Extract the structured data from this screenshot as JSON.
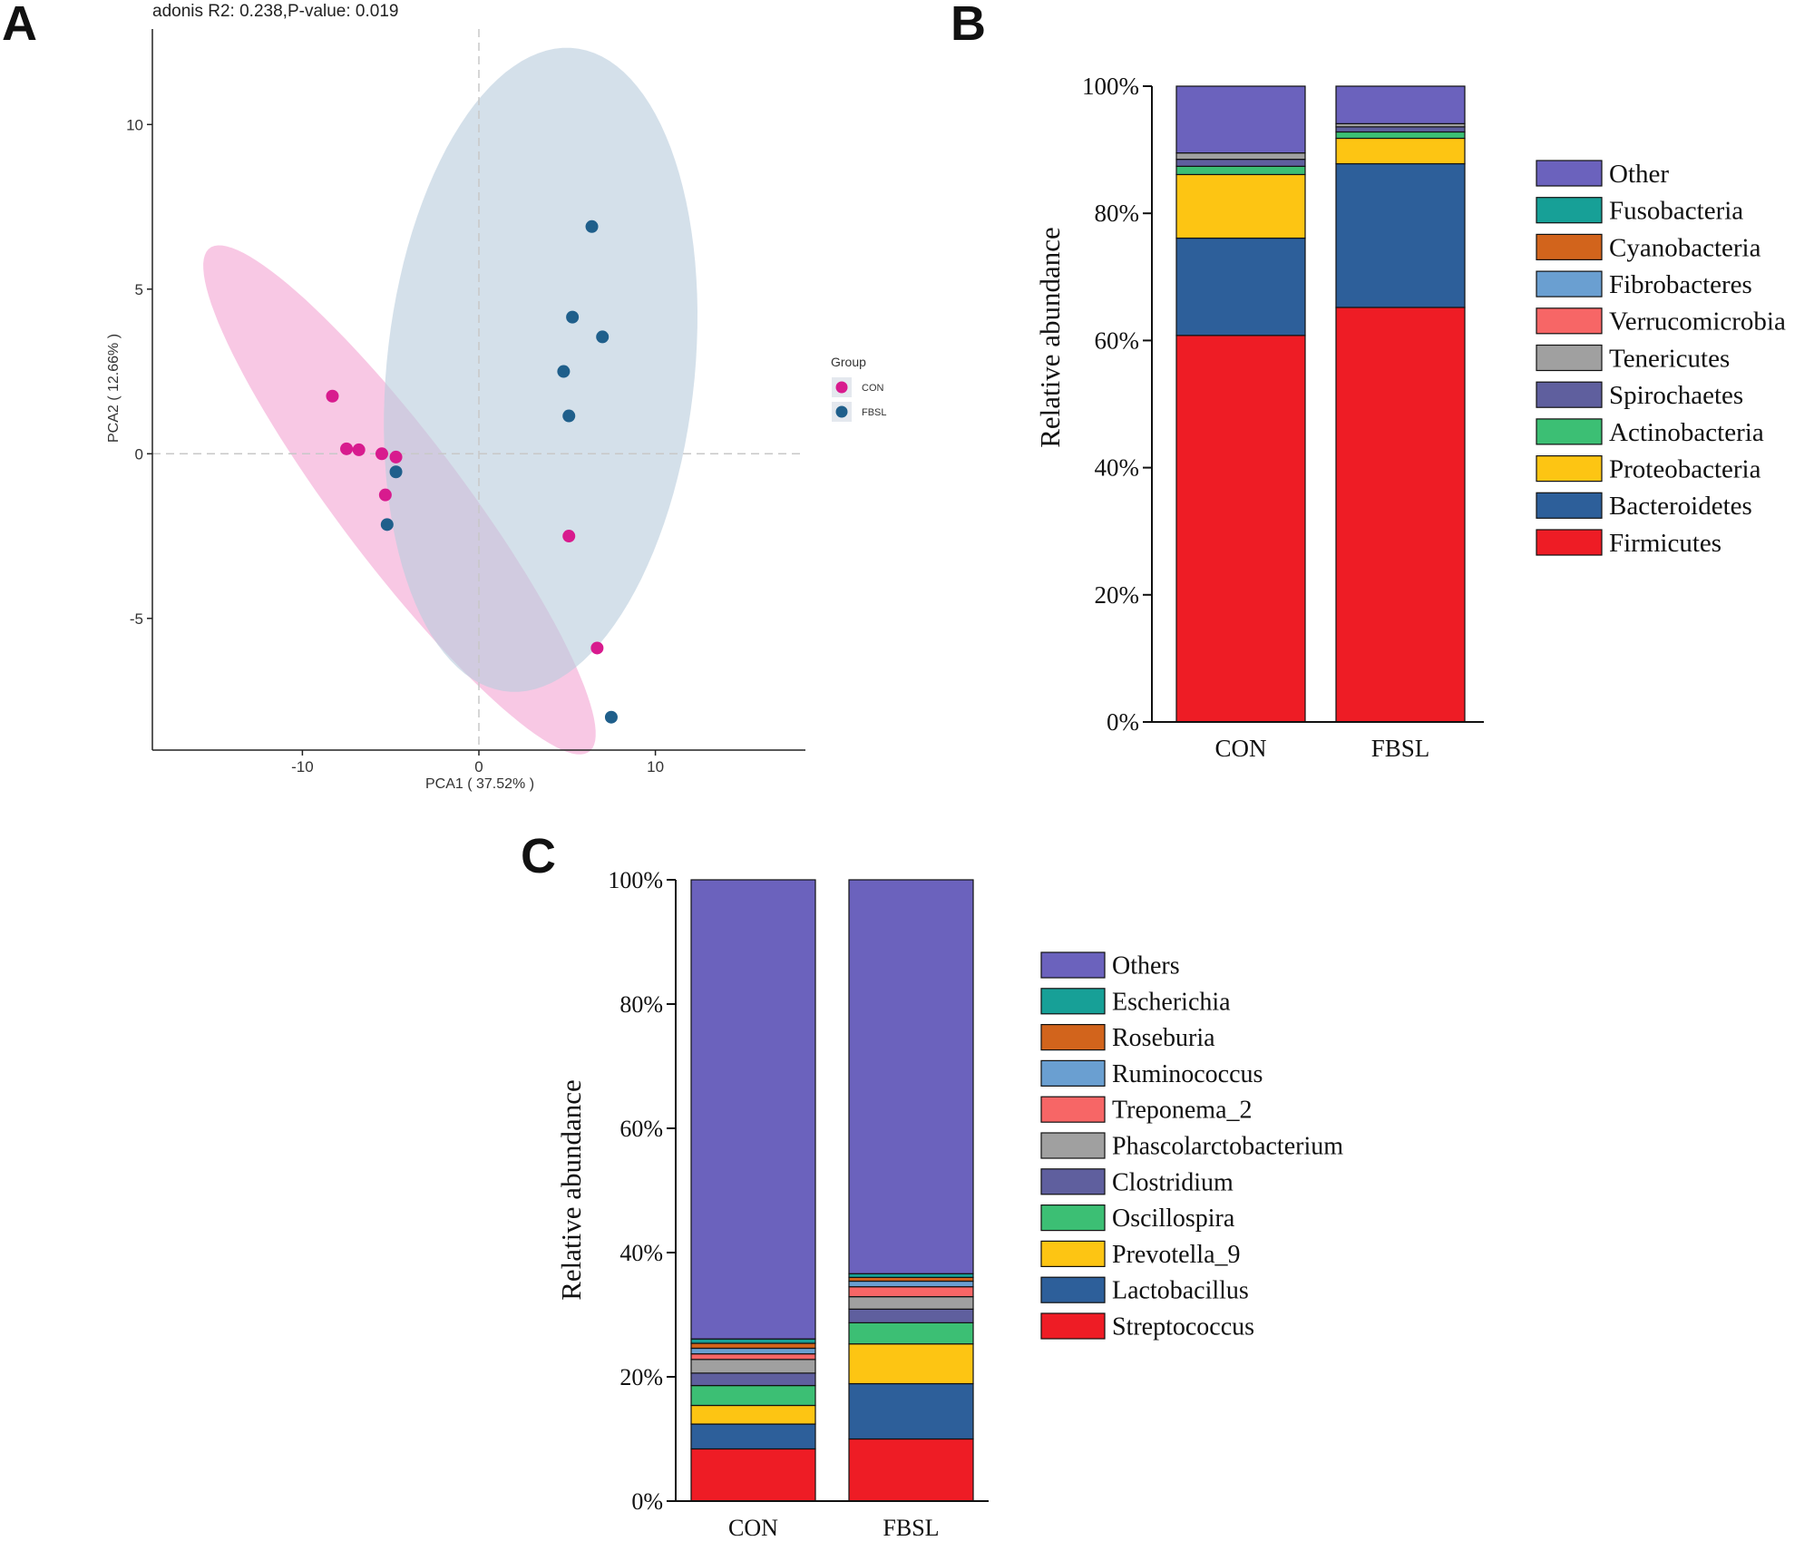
{
  "panels": {
    "a_label": "A",
    "b_label": "B",
    "c_label": "C"
  },
  "chart_data": [
    {
      "id": "pca",
      "type": "scatter",
      "title": "adonis R2: 0.238,P-value: 0.019",
      "xlabel": "PCA1 ( 37.52% )",
      "ylabel": "PCA2 ( 12.66% )",
      "xlim": [
        -18.5,
        18.5
      ],
      "ylim": [
        -9.0,
        12.9
      ],
      "xticks": [
        -10,
        0,
        10
      ],
      "xtick_labels": [
        "-10",
        "0",
        "10"
      ],
      "yticks": [
        -5,
        0,
        5,
        10
      ],
      "ytick_labels": [
        "-5",
        "0",
        "5",
        "10"
      ],
      "legend_title": "Group",
      "series": [
        {
          "name": "CON",
          "color": "#d81b8e",
          "points": [
            [
              -8.3,
              1.75
            ],
            [
              -7.5,
              0.15
            ],
            [
              -6.8,
              0.12
            ],
            [
              -5.5,
              0.0
            ],
            [
              -4.7,
              -0.1
            ],
            [
              -5.3,
              -1.25
            ],
            [
              5.1,
              -2.5
            ],
            [
              6.7,
              -5.9
            ]
          ]
        },
        {
          "name": "FBSL",
          "color": "#1f5f8b",
          "points": [
            [
              6.4,
              6.9
            ],
            [
              5.3,
              4.15
            ],
            [
              7.0,
              3.55
            ],
            [
              4.8,
              2.5
            ],
            [
              5.1,
              1.15
            ],
            [
              -4.7,
              -0.55
            ],
            [
              -5.2,
              -2.15
            ],
            [
              7.5,
              -8.0
            ]
          ]
        }
      ],
      "ellipses": [
        {
          "group": "CON",
          "color": "#f4a6d4",
          "center": [
            -4.5,
            -1.4
          ],
          "semi_major": 13.3,
          "semi_minor": 2.55,
          "angle_deg": -34
        },
        {
          "group": "FBSL",
          "color": "#b9cddd",
          "center": [
            3.5,
            2.55
          ],
          "semi_major": 10.2,
          "semi_minor": 8.4,
          "angle_deg": 60
        }
      ]
    },
    {
      "id": "phylum",
      "type": "bar",
      "stacked": true,
      "ylabel": "Relative abundance",
      "ylim": [
        0,
        100
      ],
      "yticks": [
        0,
        20,
        40,
        60,
        80,
        100
      ],
      "ytick_labels": [
        "0%",
        "20%",
        "40%",
        "60%",
        "80%",
        "100%"
      ],
      "categories": [
        "CON",
        "FBSL"
      ],
      "series": [
        {
          "name": "Firmicutes",
          "color": "#ee1c25",
          "values": [
            60.8,
            65.2
          ]
        },
        {
          "name": "Bacteroidetes",
          "color": "#2d5f9a",
          "values": [
            15.3,
            22.6
          ]
        },
        {
          "name": "Proteobacteria",
          "color": "#fdc513",
          "values": [
            10.0,
            4.0
          ]
        },
        {
          "name": "Actinobacteria",
          "color": "#3cbf74",
          "values": [
            1.3,
            1.0
          ]
        },
        {
          "name": "Spirochaetes",
          "color": "#5f5f9e",
          "values": [
            1.1,
            0.8
          ]
        },
        {
          "name": "Tenericutes",
          "color": "#a0a0a0",
          "values": [
            1.0,
            0.5
          ]
        },
        {
          "name": "Verrucomicrobia",
          "color": "#f76666",
          "values": [
            0.0,
            0.0
          ]
        },
        {
          "name": "Fibrobacteres",
          "color": "#6a9fd1",
          "values": [
            0.0,
            0.0
          ]
        },
        {
          "name": "Cyanobacteria",
          "color": "#d2641c",
          "values": [
            0.0,
            0.0
          ]
        },
        {
          "name": "Fusobacteria",
          "color": "#17a097",
          "values": [
            0.0,
            0.0
          ]
        },
        {
          "name": "Other",
          "color": "#6b62bd",
          "values": [
            10.5,
            5.9
          ]
        }
      ],
      "legend_order": [
        "Other",
        "Fusobacteria",
        "Cyanobacteria",
        "Fibrobacteres",
        "Verrucomicrobia",
        "Tenericutes",
        "Spirochaetes",
        "Actinobacteria",
        "Proteobacteria",
        "Bacteroidetes",
        "Firmicutes"
      ]
    },
    {
      "id": "genus",
      "type": "bar",
      "stacked": true,
      "ylabel": "Relative abundance",
      "ylim": [
        0,
        100
      ],
      "yticks": [
        0,
        20,
        40,
        60,
        80,
        100
      ],
      "ytick_labels": [
        "0%",
        "20%",
        "40%",
        "60%",
        "80%",
        "100%"
      ],
      "categories": [
        "CON",
        "FBSL"
      ],
      "series": [
        {
          "name": "Streptococcus",
          "color": "#ee1c25",
          "values": [
            8.4,
            10.0
          ]
        },
        {
          "name": "Lactobacillus",
          "color": "#2d5f9a",
          "values": [
            4.0,
            8.9
          ]
        },
        {
          "name": "Prevotella_9",
          "color": "#fdc513",
          "values": [
            3.0,
            6.4
          ]
        },
        {
          "name": "Oscillospira",
          "color": "#3cbf74",
          "values": [
            3.2,
            3.4
          ]
        },
        {
          "name": "Clostridium",
          "color": "#5f5f9e",
          "values": [
            2.0,
            2.2
          ]
        },
        {
          "name": "Phascolarctobacterium",
          "color": "#a0a0a0",
          "values": [
            2.2,
            2.0
          ]
        },
        {
          "name": "Treponema_2",
          "color": "#f76666",
          "values": [
            0.9,
            1.6
          ]
        },
        {
          "name": "Ruminococcus",
          "color": "#6a9fd1",
          "values": [
            0.9,
            0.9
          ]
        },
        {
          "name": "Roseburia",
          "color": "#d2641c",
          "values": [
            0.8,
            0.6
          ]
        },
        {
          "name": "Escherichia",
          "color": "#17a097",
          "values": [
            0.7,
            0.6
          ]
        },
        {
          "name": "Others",
          "color": "#6b62bd",
          "values": [
            73.9,
            63.4
          ]
        }
      ],
      "legend_order": [
        "Others",
        "Escherichia",
        "Roseburia",
        "Ruminococcus",
        "Treponema_2",
        "Phascolarctobacterium",
        "Clostridium",
        "Oscillospira",
        "Prevotella_9",
        "Lactobacillus",
        "Streptococcus"
      ]
    }
  ]
}
